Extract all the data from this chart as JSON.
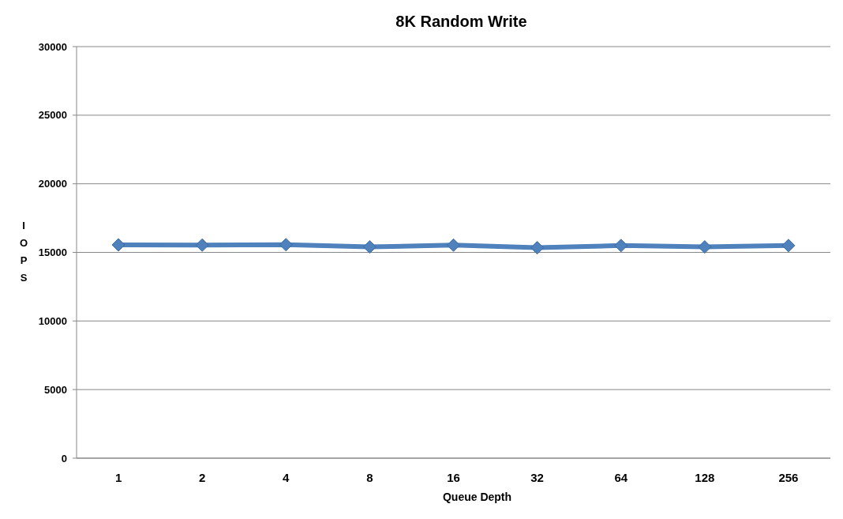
{
  "chart_data": {
    "type": "line",
    "title": "8K Random Write",
    "xlabel": "Queue Depth",
    "ylabel": "IOPS",
    "categories": [
      "1",
      "2",
      "4",
      "8",
      "16",
      "32",
      "64",
      "128",
      "256"
    ],
    "series": [
      {
        "color": "#4f81bd",
        "values": [
          15550,
          15530,
          15560,
          15400,
          15530,
          15340,
          15500,
          15400,
          15500
        ]
      }
    ],
    "ylim": [
      0,
      30000
    ],
    "yticks": [
      0,
      5000,
      10000,
      15000,
      20000,
      25000,
      30000
    ],
    "grid": "y",
    "marker": "diamond"
  }
}
